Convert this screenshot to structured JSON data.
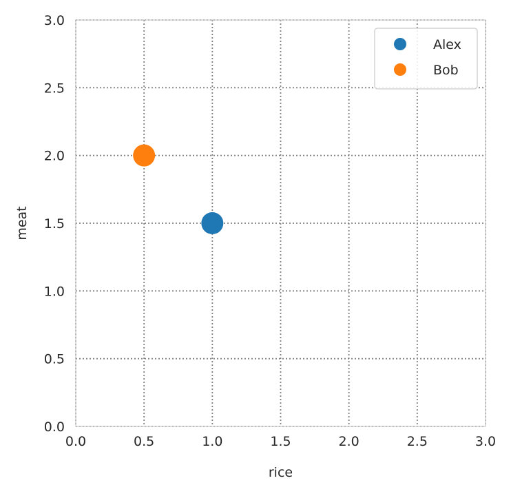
{
  "chart_data": {
    "type": "scatter",
    "title": "",
    "xlabel": "rice",
    "ylabel": "meat",
    "xlim": [
      0,
      3
    ],
    "ylim": [
      0,
      3
    ],
    "xticks": [
      0.0,
      0.5,
      1.0,
      1.5,
      2.0,
      2.5,
      3.0
    ],
    "yticks": [
      0.0,
      0.5,
      1.0,
      1.5,
      2.0,
      2.5,
      3.0
    ],
    "xtick_labels": [
      "0.0",
      "0.5",
      "1.0",
      "1.5",
      "2.0",
      "2.5",
      "3.0"
    ],
    "ytick_labels": [
      "0.0",
      "0.5",
      "1.0",
      "1.5",
      "2.0",
      "2.5",
      "3.0"
    ],
    "grid": true,
    "grid_style": "dotted",
    "legend_position": "top-right",
    "series": [
      {
        "name": "Alex",
        "color": "#1f77b4",
        "points": [
          {
            "x": 1.0,
            "y": 1.5
          }
        ]
      },
      {
        "name": "Bob",
        "color": "#ff7f0e",
        "points": [
          {
            "x": 0.5,
            "y": 2.0
          }
        ]
      }
    ]
  }
}
